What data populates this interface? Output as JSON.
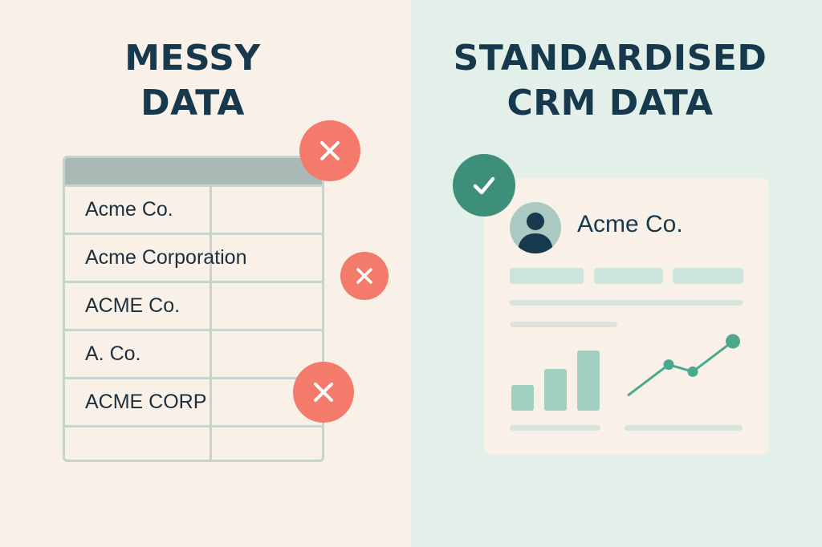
{
  "left": {
    "title_line1": "MESSY",
    "title_line2": "DATA",
    "rows": [
      "Acme Co.",
      "Acme Corporation",
      "ACME Co.",
      "A. Co.",
      "ACME CORP",
      ""
    ],
    "badge_icon": "x-icon"
  },
  "right": {
    "title_line1": "STANDARDISED",
    "title_line2": "CRM DATA",
    "company_name": "Acme Co.",
    "badge_icon": "check-icon",
    "bar_values": [
      0.31,
      0.5,
      0.72
    ],
    "line_values": [
      0.12,
      0.55,
      0.45,
      0.88
    ]
  },
  "colors": {
    "left_bg": "#f9f1e8",
    "right_bg": "#e2f0e9",
    "heading": "#17394d",
    "error": "#f47a6c",
    "success": "#3e8f79",
    "chart_accent": "#9fd0c2",
    "line_accent": "#4aa88f"
  }
}
